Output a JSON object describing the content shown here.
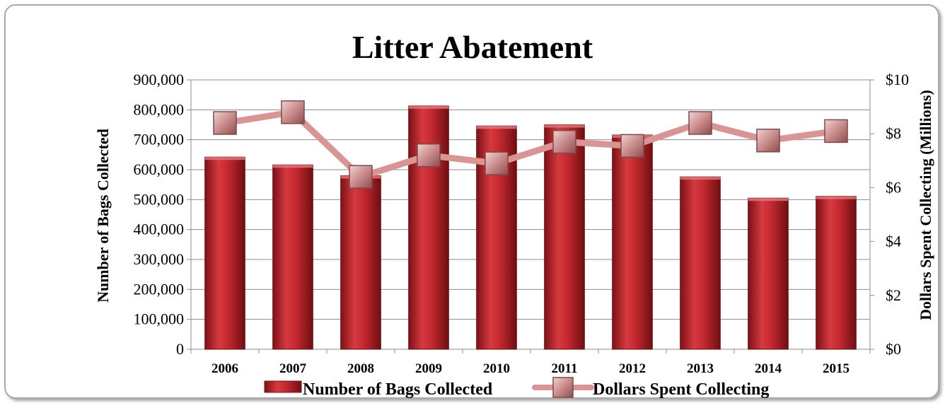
{
  "chart_data": {
    "type": "bar",
    "title": "Litter Abatement",
    "categories": [
      "2006",
      "2007",
      "2008",
      "2009",
      "2010",
      "2011",
      "2012",
      "2013",
      "2014",
      "2015"
    ],
    "series": [
      {
        "name": "Number of Bags Collected",
        "type": "bar",
        "axis": "left",
        "color": "#c0272d",
        "values": [
          642000,
          616000,
          580000,
          813000,
          746000,
          750000,
          716000,
          576000,
          505000,
          511000
        ]
      },
      {
        "name": "Dollars Spent Collecting",
        "type": "line",
        "axis": "right",
        "color": "#d99594",
        "values": [
          8.4,
          8.8,
          6.4,
          7.2,
          6.9,
          7.7,
          7.55,
          8.4,
          7.75,
          8.1
        ]
      }
    ],
    "ylabel": "Number of Bags Collected",
    "y2label": "Dollars Spent Collecting (Millions)",
    "ylim": [
      0,
      900000
    ],
    "y2lim": [
      0,
      10
    ],
    "yticks": [
      "0",
      "100,000",
      "200,000",
      "300,000",
      "400,000",
      "500,000",
      "600,000",
      "700,000",
      "800,000",
      "900,000"
    ],
    "y2ticks": [
      "$0",
      "$2",
      "$4",
      "$6",
      "$8",
      "$10"
    ],
    "grid": true,
    "legend": "bottom"
  }
}
